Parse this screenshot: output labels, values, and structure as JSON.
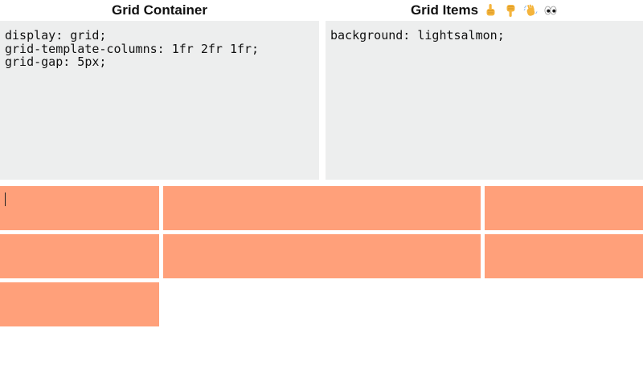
{
  "container_panel": {
    "title": "Grid Container",
    "css_code": "display: grid;\ngrid-template-columns: 1fr 2fr 1fr;\ngrid-gap: 5px;"
  },
  "items_panel": {
    "title": "Grid Items",
    "emojis": [
      "pointing-up-icon",
      "pointing-down-icon",
      "waving-hand-icon",
      "eyes-icon"
    ],
    "css_code": "background: lightsalmon;"
  },
  "grid_output": {
    "item_count": 7,
    "item_color": "#ffa07a"
  }
}
